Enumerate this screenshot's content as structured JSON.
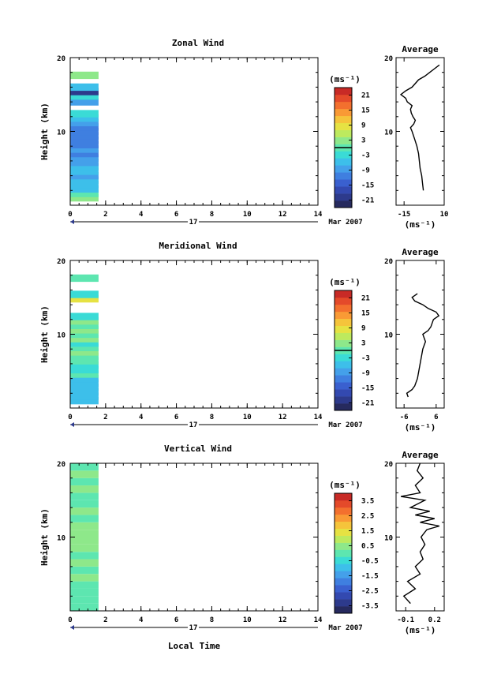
{
  "figure": {
    "date_day": "17",
    "date_month_year": "Mar 2007",
    "xlabel_bottom": "Local Time",
    "colorbar_unit": "(ms⁻¹)",
    "avg_unit": "(ms⁻¹)",
    "avg_title": "Average"
  },
  "colormap": [
    "#262a5e",
    "#2d3a8c",
    "#3349b0",
    "#3a60cf",
    "#3f7fe0",
    "#44a0ea",
    "#3dbfea",
    "#3adbd6",
    "#5de6b0",
    "#8ee88a",
    "#bdea5e",
    "#e6e243",
    "#f5c43b",
    "#f99a35",
    "#f3702e",
    "#e44a2a",
    "#c82a26"
  ],
  "chart_data": [
    {
      "type": "heatmap",
      "title": "Zonal Wind",
      "ylabel": "Height (km)",
      "xlim": [
        0,
        14
      ],
      "ylim": [
        0,
        20
      ],
      "x_ticks": [
        0,
        2,
        4,
        6,
        8,
        10,
        12,
        14
      ],
      "y_ticks": [
        10,
        20
      ],
      "colorbar": {
        "ticks": [
          21,
          15,
          9,
          3,
          -3,
          -9,
          -15,
          -21
        ],
        "range": [
          -24,
          24
        ],
        "zero_line": 0
      },
      "data_extent_x": [
        0,
        1.6
      ],
      "rows": [
        {
          "y": 1.0,
          "v": 3.5
        },
        {
          "y": 1.6,
          "v": -0.5
        },
        {
          "y": 2.2,
          "v": -5
        },
        {
          "y": 2.8,
          "v": -7
        },
        {
          "y": 3.4,
          "v": -6
        },
        {
          "y": 4.0,
          "v": -8
        },
        {
          "y": 4.6,
          "v": -6
        },
        {
          "y": 5.2,
          "v": -7
        },
        {
          "y": 5.8,
          "v": -9
        },
        {
          "y": 6.4,
          "v": -9
        },
        {
          "y": 7.0,
          "v": -10
        },
        {
          "y": 7.6,
          "v": -9
        },
        {
          "y": 8.2,
          "v": -11
        },
        {
          "y": 8.8,
          "v": -10
        },
        {
          "y": 9.4,
          "v": -11
        },
        {
          "y": 10.0,
          "v": -12
        },
        {
          "y": 10.6,
          "v": -10
        },
        {
          "y": 11.2,
          "v": -9
        },
        {
          "y": 11.8,
          "v": -6
        },
        {
          "y": 12.4,
          "v": -3.5
        },
        {
          "y": 14.0,
          "v": -8
        },
        {
          "y": 14.8,
          "v": -4
        },
        {
          "y": 15.4,
          "v": -21
        },
        {
          "y": 16.0,
          "v": -6
        },
        {
          "y": 17.6,
          "v": 4
        }
      ],
      "average": {
        "title": "Average",
        "xlim": [
          -20,
          10
        ],
        "x_ticks": [
          -15,
          10
        ],
        "y_ticks": [
          10,
          20
        ],
        "profile": [
          [
            2,
            -3
          ],
          [
            3,
            -3.5
          ],
          [
            4,
            -4
          ],
          [
            5,
            -5
          ],
          [
            6,
            -5.5
          ],
          [
            7,
            -6
          ],
          [
            8,
            -7
          ],
          [
            9,
            -8.5
          ],
          [
            10,
            -10
          ],
          [
            10.5,
            -11
          ],
          [
            11,
            -9
          ],
          [
            11.5,
            -8
          ],
          [
            12,
            -9.5
          ],
          [
            12.5,
            -10.5
          ],
          [
            13,
            -11
          ],
          [
            13.5,
            -10
          ],
          [
            14,
            -13
          ],
          [
            14.5,
            -14
          ],
          [
            15,
            -17
          ],
          [
            15.5,
            -14
          ],
          [
            16,
            -10
          ],
          [
            17,
            -6
          ],
          [
            17.5,
            -2
          ],
          [
            18,
            1
          ],
          [
            18.5,
            4
          ],
          [
            19,
            7
          ]
        ]
      }
    },
    {
      "type": "heatmap",
      "title": "Meridional Wind",
      "ylabel": "Height (km)",
      "xlim": [
        0,
        14
      ],
      "ylim": [
        0,
        20
      ],
      "x_ticks": [
        0,
        2,
        4,
        6,
        8,
        10,
        12,
        14
      ],
      "y_ticks": [
        10,
        20
      ],
      "colorbar": {
        "ticks": [
          21,
          15,
          9,
          3,
          -3,
          -9,
          -15,
          -21
        ],
        "range": [
          -24,
          24
        ],
        "zero_line": 0
      },
      "data_extent_x": [
        0,
        1.6
      ],
      "rows": [
        {
          "y": 1.0,
          "v": -6
        },
        {
          "y": 1.6,
          "v": -7
        },
        {
          "y": 2.2,
          "v": -5
        },
        {
          "y": 2.8,
          "v": -6
        },
        {
          "y": 3.4,
          "v": -7
        },
        {
          "y": 4.0,
          "v": -5
        },
        {
          "y": 4.6,
          "v": 0
        },
        {
          "y": 5.2,
          "v": -4
        },
        {
          "y": 5.8,
          "v": -2
        },
        {
          "y": 6.4,
          "v": 1
        },
        {
          "y": 7.0,
          "v": -1
        },
        {
          "y": 7.6,
          "v": 2
        },
        {
          "y": 8.2,
          "v": 0
        },
        {
          "y": 8.8,
          "v": -2
        },
        {
          "y": 9.4,
          "v": 2
        },
        {
          "y": 10.0,
          "v": 1
        },
        {
          "y": 10.6,
          "v": 3
        },
        {
          "y": 11.2,
          "v": 0
        },
        {
          "y": 11.8,
          "v": 2
        },
        {
          "y": 12.4,
          "v": -3
        },
        {
          "y": 14.8,
          "v": 9
        },
        {
          "y": 15.4,
          "v": -2
        },
        {
          "y": 17.6,
          "v": -1
        }
      ],
      "average": {
        "title": "Average",
        "xlim": [
          -9,
          9
        ],
        "x_ticks": [
          -6,
          6
        ],
        "y_ticks": [
          10,
          20
        ],
        "profile": [
          [
            1.5,
            -4.5
          ],
          [
            2,
            -5
          ],
          [
            2.5,
            -3
          ],
          [
            3,
            -2
          ],
          [
            4,
            -1
          ],
          [
            5,
            -0.5
          ],
          [
            6,
            0
          ],
          [
            7,
            0.5
          ],
          [
            8,
            1
          ],
          [
            9,
            2
          ],
          [
            10,
            1
          ],
          [
            10.5,
            3
          ],
          [
            11,
            4
          ],
          [
            12,
            5
          ],
          [
            12.5,
            7
          ],
          [
            13,
            6
          ],
          [
            13.5,
            3
          ],
          [
            14,
            1
          ],
          [
            14.5,
            -2
          ],
          [
            15,
            -3
          ],
          [
            15.5,
            -1
          ]
        ]
      }
    },
    {
      "type": "heatmap",
      "title": "Vertical Wind",
      "ylabel": "Height (km)",
      "xlim": [
        0,
        14
      ],
      "ylim": [
        0,
        20
      ],
      "x_ticks": [
        0,
        2,
        4,
        6,
        8,
        10,
        12,
        14
      ],
      "y_ticks": [
        10,
        20
      ],
      "colorbar": {
        "ticks": [
          3.5,
          2.5,
          1.5,
          0.5,
          -0.5,
          -1.5,
          -2.5,
          -3.5
        ],
        "range": [
          -4,
          4
        ],
        "zero_line": null
      },
      "data_extent_x": [
        0,
        1.6
      ],
      "rows": [
        {
          "y": 0.5,
          "v": 0.1
        },
        {
          "y": 1.5,
          "v": -0.2
        },
        {
          "y": 2.5,
          "v": 0.2
        },
        {
          "y": 3.5,
          "v": 0.0
        },
        {
          "y": 4.5,
          "v": 0.3
        },
        {
          "y": 5.5,
          "v": 0.1
        },
        {
          "y": 6.5,
          "v": 0.3
        },
        {
          "y": 7.5,
          "v": 0.2
        },
        {
          "y": 8.5,
          "v": 0.4
        },
        {
          "y": 9.5,
          "v": 0.3
        },
        {
          "y": 10.5,
          "v": 0.3
        },
        {
          "y": 11.5,
          "v": 0.4
        },
        {
          "y": 12.5,
          "v": 0.2
        },
        {
          "y": 13.5,
          "v": 0.3
        },
        {
          "y": 14.5,
          "v": 0.1
        },
        {
          "y": 15.5,
          "v": 0.2
        },
        {
          "y": 16.5,
          "v": 0.3
        },
        {
          "y": 17.5,
          "v": 0.2
        },
        {
          "y": 18.5,
          "v": 0.3
        },
        {
          "y": 19.5,
          "v": 0.2
        }
      ],
      "average": {
        "title": "Average",
        "xlim": [
          -0.2,
          0.3
        ],
        "x_ticks": [
          -0.1,
          0.2
        ],
        "y_ticks": [
          10,
          20
        ],
        "profile": [
          [
            1,
            -0.05
          ],
          [
            2,
            -0.12
          ],
          [
            3,
            0.0
          ],
          [
            4,
            -0.08
          ],
          [
            5,
            0.05
          ],
          [
            6,
            0.0
          ],
          [
            7,
            0.08
          ],
          [
            8,
            0.05
          ],
          [
            9,
            0.1
          ],
          [
            10,
            0.06
          ],
          [
            11,
            0.12
          ],
          [
            11.5,
            0.25
          ],
          [
            12,
            0.05
          ],
          [
            12.5,
            0.2
          ],
          [
            13,
            0.0
          ],
          [
            13.5,
            0.15
          ],
          [
            14,
            -0.05
          ],
          [
            15,
            0.1
          ],
          [
            15.5,
            -0.15
          ],
          [
            16,
            0.05
          ],
          [
            17,
            0.0
          ],
          [
            18,
            0.08
          ],
          [
            19,
            0.02
          ],
          [
            20,
            0.05
          ]
        ]
      }
    }
  ]
}
